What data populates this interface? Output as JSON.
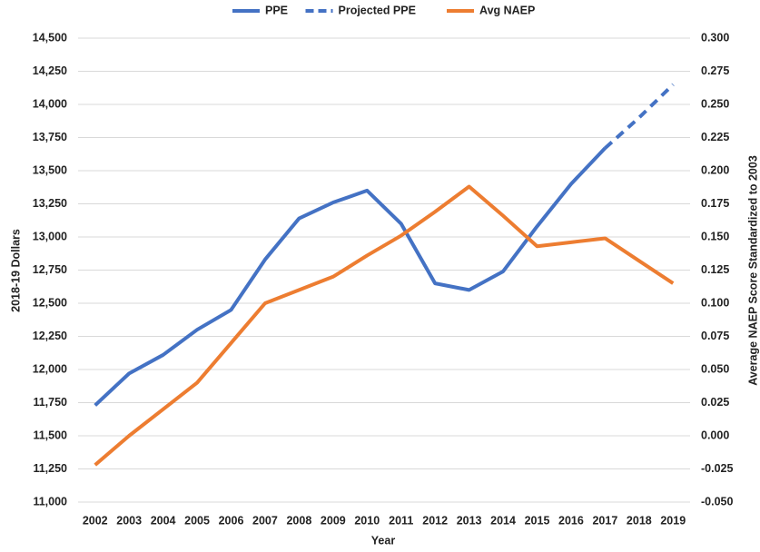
{
  "chart_data": {
    "type": "line",
    "x_label": "Year",
    "y_label": "2018-19 Dollars",
    "y2_label": "Average NAEP Score Standardized to 2003",
    "categories": [
      "2002",
      "2003",
      "2004",
      "2005",
      "2006",
      "2007",
      "2008",
      "2009",
      "2010",
      "2011",
      "2012",
      "2013",
      "2014",
      "2015",
      "2016",
      "2017",
      "2018",
      "2019"
    ],
    "series": [
      {
        "name": "PPE",
        "color": "#4472c4",
        "style": "solid",
        "values": [
          11730,
          11970,
          12110,
          12300,
          12450,
          12830,
          13140,
          13260,
          13350,
          13100,
          12650,
          12600,
          12740,
          13080,
          13400,
          13670,
          null,
          null
        ]
      },
      {
        "name": "Projected PPE",
        "color": "#4472c4",
        "style": "dashed",
        "values": [
          null,
          null,
          null,
          null,
          null,
          null,
          null,
          null,
          null,
          null,
          null,
          null,
          null,
          null,
          null,
          13670,
          13900,
          14150
        ]
      },
      {
        "name": "Avg NAEP",
        "color": "#ed7d31",
        "style": "solid",
        "axis": "y2",
        "values": [
          -0.022,
          0.0,
          0.02,
          0.04,
          0.07,
          0.1,
          0.11,
          0.12,
          0.136,
          0.151,
          0.169,
          0.188,
          0.166,
          0.143,
          0.146,
          0.149,
          0.132,
          0.115
        ]
      }
    ],
    "ylim": [
      11000,
      14500
    ],
    "yticks": [
      {
        "value": 11000,
        "label": "11,000"
      },
      {
        "value": 11250,
        "label": "11,250"
      },
      {
        "value": 11500,
        "label": "11,500"
      },
      {
        "value": 11750,
        "label": "11,750"
      },
      {
        "value": 12000,
        "label": "12,000"
      },
      {
        "value": 12250,
        "label": "12,250"
      },
      {
        "value": 12500,
        "label": "12,500"
      },
      {
        "value": 12750,
        "label": "12,750"
      },
      {
        "value": 13000,
        "label": "13,000"
      },
      {
        "value": 13250,
        "label": "13,250"
      },
      {
        "value": 13500,
        "label": "13,500"
      },
      {
        "value": 13750,
        "label": "13,750"
      },
      {
        "value": 14000,
        "label": "14,000"
      },
      {
        "value": 14250,
        "label": "14,250"
      },
      {
        "value": 14500,
        "label": "14,500"
      }
    ],
    "y2lim": [
      -0.05,
      0.3
    ],
    "y2ticks": [
      {
        "value": -0.05,
        "label": "-0.050"
      },
      {
        "value": -0.025,
        "label": "-0.025"
      },
      {
        "value": 0,
        "label": "0.000"
      },
      {
        "value": 0.025,
        "label": "0.025"
      },
      {
        "value": 0.05,
        "label": "0.050"
      },
      {
        "value": 0.075,
        "label": "0.075"
      },
      {
        "value": 0.1,
        "label": "0.100"
      },
      {
        "value": 0.125,
        "label": "0.125"
      },
      {
        "value": 0.15,
        "label": "0.150"
      },
      {
        "value": 0.175,
        "label": "0.175"
      },
      {
        "value": 0.2,
        "label": "0.200"
      },
      {
        "value": 0.225,
        "label": "0.225"
      },
      {
        "value": 0.25,
        "label": "0.250"
      },
      {
        "value": 0.275,
        "label": "0.275"
      },
      {
        "value": 0.3,
        "label": "0.300"
      }
    ],
    "grid": true,
    "legend": "top"
  }
}
